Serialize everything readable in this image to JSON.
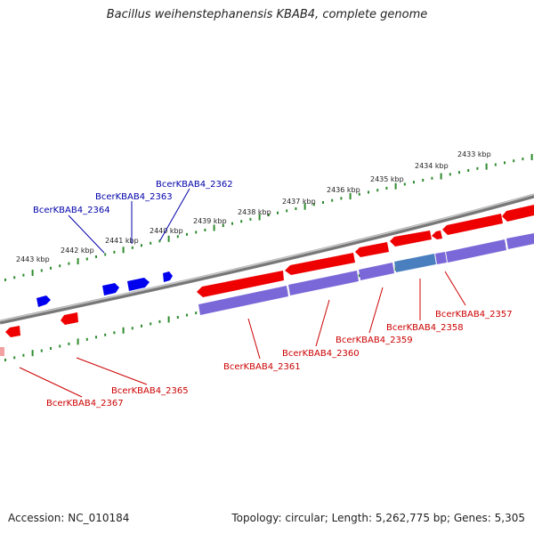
{
  "title": "Bacillus weihenstephanensis KBAB4, complete genome",
  "footer": {
    "accession": "Accession: NC_010184",
    "summary": "Topology: circular; Length: 5,262,775 bp; Genes: 5,305"
  },
  "scale_labels": [
    "2433 kbp",
    "2434 kbp",
    "2435 kbp",
    "2436 kbp",
    "2437 kbp",
    "2438 kbp",
    "2439 kbp",
    "2440 kbp",
    "2441 kbp",
    "2442 kbp",
    "2443 kbp"
  ],
  "gene_labels": {
    "forward": [
      "BcerKBAB4_2362",
      "BcerKBAB4_2363",
      "BcerKBAB4_2364"
    ],
    "reverse": [
      "BcerKBAB4_2357",
      "BcerKBAB4_2358",
      "BcerKBAB4_2359",
      "BcerKBAB4_2360",
      "BcerKBAB4_2361",
      "BcerKBAB4_2365",
      "BcerKBAB4_2367"
    ]
  },
  "colors": {
    "backbone": "#8a8a8a",
    "forward_gene": "#0000ee",
    "reverse_gene": "#ee0000",
    "cds_feature": "#7b68d8",
    "highlighted_feature": "#4a7fbf",
    "tick": "#2e8b2e",
    "forward_label": "#0000aa",
    "reverse_label": "#cc0000"
  }
}
